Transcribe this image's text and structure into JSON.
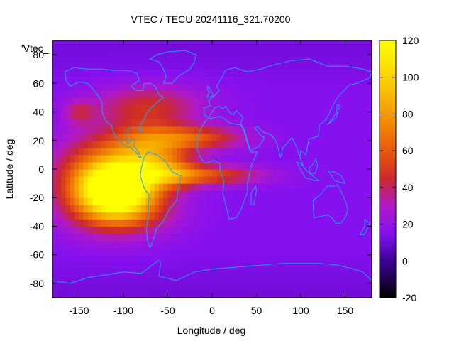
{
  "chart_data": {
    "type": "heatmap",
    "title": "VTEC / TECU 20241116_321.70200",
    "xlabel": "Longitude / deg",
    "ylabel": "Latitude / deg",
    "xlim": [
      -180,
      180
    ],
    "ylim": [
      -90,
      90
    ],
    "x_ticks": [
      -150,
      -100,
      -50,
      0,
      50,
      100,
      150
    ],
    "y_ticks": [
      -80,
      -60,
      -40,
      -20,
      0,
      20,
      40,
      60,
      80
    ],
    "colorbar": {
      "range": [
        -20,
        120
      ],
      "ticks": [
        -20,
        0,
        20,
        40,
        60,
        80,
        100,
        120
      ],
      "stops": [
        {
          "value": -20,
          "color": "#000000"
        },
        {
          "value": 0,
          "color": "#3c0496"
        },
        {
          "value": 15,
          "color": "#8610f0"
        },
        {
          "value": 30,
          "color": "#b019c8"
        },
        {
          "value": 45,
          "color": "#cc2a2a"
        },
        {
          "value": 60,
          "color": "#e85a0c"
        },
        {
          "value": 80,
          "color": "#f49a00"
        },
        {
          "value": 100,
          "color": "#fbd400"
        },
        {
          "value": 120,
          "color": "#ffff00"
        }
      ]
    },
    "legend_label": "'Vtec_",
    "background_value": 15,
    "coastline_color": "#1fa0ff",
    "grid_resolution_deg": 5,
    "tec_blobs": [
      {
        "lon": -108,
        "lat": -14,
        "amp": 95,
        "sigma_lon": 28,
        "sigma_lat": 12
      },
      {
        "lon": -120,
        "lat": -5,
        "amp": 55,
        "sigma_lon": 40,
        "sigma_lat": 20
      },
      {
        "lon": -100,
        "lat": -30,
        "amp": 30,
        "sigma_lon": 40,
        "sigma_lat": 12
      },
      {
        "lon": -70,
        "lat": 12,
        "amp": 45,
        "sigma_lon": 30,
        "sigma_lat": 14
      },
      {
        "lon": -70,
        "lat": 45,
        "amp": 28,
        "sigma_lon": 45,
        "sigma_lat": 10
      },
      {
        "lon": -150,
        "lat": 40,
        "amp": 20,
        "sigma_lon": 12,
        "sigma_lat": 6
      },
      {
        "lon": -20,
        "lat": 22,
        "amp": 40,
        "sigma_lon": 40,
        "sigma_lat": 6
      },
      {
        "lon": -10,
        "lat": -4,
        "amp": 40,
        "sigma_lon": 48,
        "sigma_lat": 5
      },
      {
        "lon": -50,
        "lat": -2,
        "amp": 25,
        "sigma_lon": 25,
        "sigma_lat": 8
      }
    ]
  }
}
